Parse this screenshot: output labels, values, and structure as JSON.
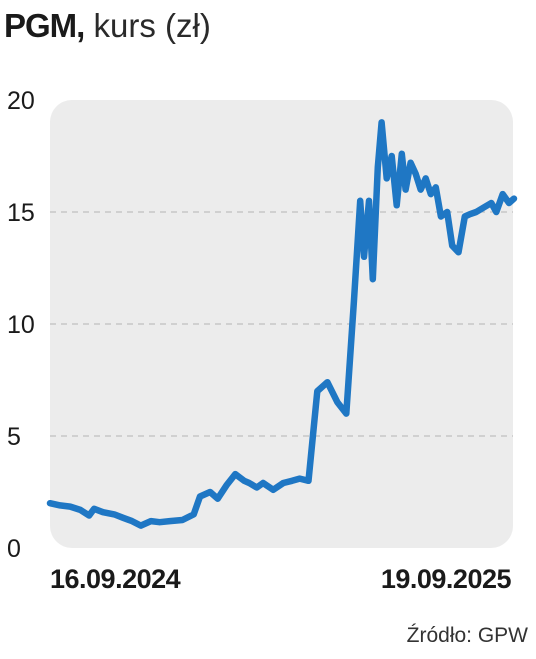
{
  "header": {
    "ticker": "PGM,",
    "subtitle": "kurs (zł)"
  },
  "source": "Źródło: GPW",
  "colors": {
    "line": "#1f77c4",
    "plot_background": "#ececec",
    "grid": "#b5b5b5",
    "text": "#1a1a1a"
  },
  "chart_data": {
    "type": "line",
    "title": "PGM, kurs (zł)",
    "xlabel": "",
    "ylabel": "",
    "x_tick_labels": [
      "16.09.2024",
      "19.09.2025"
    ],
    "x_range": [
      "16.09.2024",
      "19.09.2025"
    ],
    "ylim": [
      0,
      20
    ],
    "yticks": [
      0,
      5,
      10,
      15,
      20
    ],
    "grid": "horizontal dashed",
    "legend": "none",
    "series": [
      {
        "x": [
          "16.09.2024",
          "24.09.2024",
          "02.10.2024",
          "10.10.2024",
          "17.10.2024",
          "21.10.2024",
          "28.10.2024",
          "06.11.2024",
          "13.11.2024",
          "20.11.2024",
          "27.11.2024",
          "05.12.2024",
          "12.12.2024",
          "20.12.2024",
          "30.12.2024",
          "08.01.2025",
          "13.01.2025",
          "21.01.2025",
          "27.01.2025",
          "03.02.2025",
          "10.02.2025",
          "17.02.2025",
          "21.02.2025",
          "27.02.2025",
          "04.03.2025",
          "12.03.2025",
          "20.03.2025",
          "27.03.2025",
          "02.04.2025",
          "09.04.2025",
          "16.04.2025",
          "24.04.2025",
          "02.05.2025",
          "09.05.2025",
          "15.05.2025",
          "20.05.2025",
          "23.05.2025",
          "27.05.2025",
          "30.05.2025",
          "03.06.2025",
          "06.06.2025",
          "10.06.2025",
          "14.06.2025",
          "18.06.2025",
          "22.06.2025",
          "25.06.2025",
          "29.06.2025",
          "03.07.2025",
          "07.07.2025",
          "11.07.2025",
          "15.07.2025",
          "19.07.2025",
          "23.07.2025",
          "28.07.2025",
          "01.08.2025",
          "06.08.2025",
          "11.08.2025",
          "15.08.2025",
          "20.08.2025",
          "26.08.2025",
          "01.09.2025",
          "05.09.2025",
          "10.09.2025",
          "15.09.2025",
          "19.09.2025"
        ],
        "values": [
          2.0,
          1.9,
          1.85,
          1.7,
          1.45,
          1.75,
          1.6,
          1.5,
          1.35,
          1.2,
          1.0,
          1.2,
          1.15,
          1.2,
          1.25,
          1.5,
          2.3,
          2.5,
          2.2,
          2.8,
          3.3,
          3.0,
          2.9,
          2.7,
          2.9,
          2.6,
          2.9,
          3.0,
          3.1,
          3.0,
          7.0,
          7.4,
          6.5,
          6.0,
          11.0,
          15.5,
          13.0,
          15.5,
          12.0,
          17.0,
          19.0,
          16.5,
          17.5,
          15.3,
          17.6,
          16.0,
          17.2,
          16.7,
          16.0,
          16.5,
          15.8,
          16.1,
          14.8,
          15.0,
          13.5,
          13.2,
          14.8,
          14.9,
          15.0,
          15.2,
          15.4,
          15.0,
          15.8,
          15.4,
          15.6
        ]
      }
    ]
  }
}
